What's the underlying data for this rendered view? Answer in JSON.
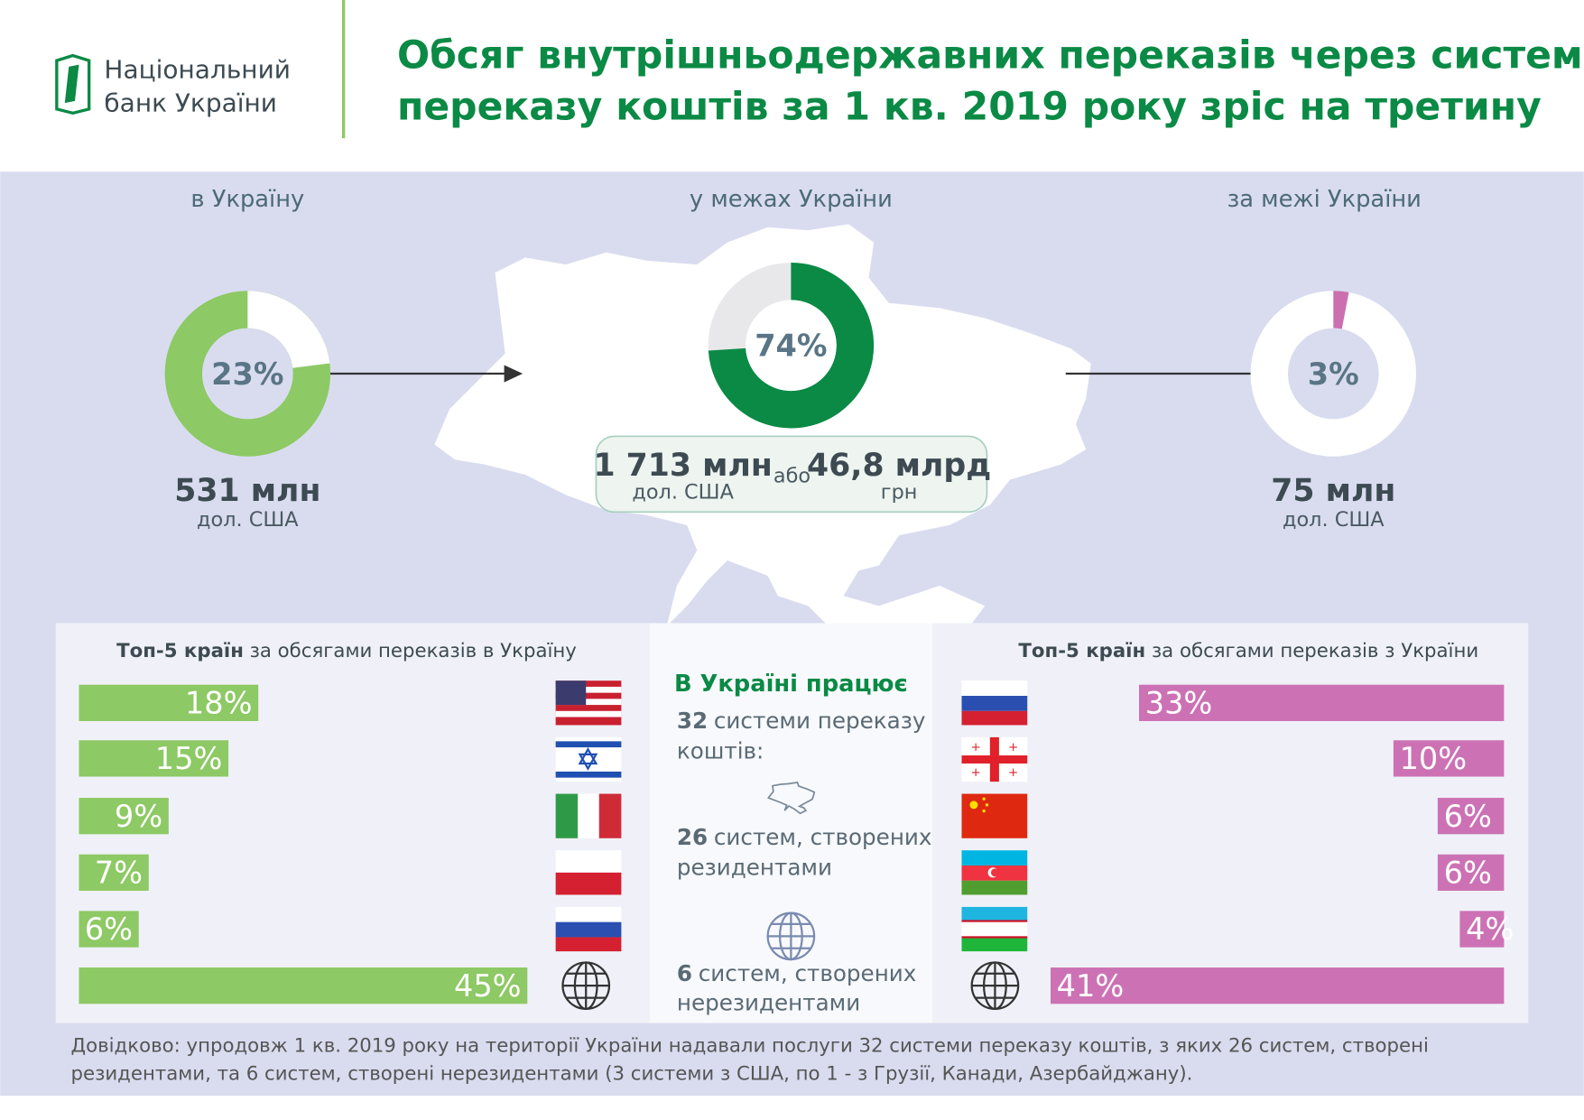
{
  "header": {
    "logo_text": [
      "Національний",
      "банк України"
    ],
    "title": [
      "Обсяг внутрішньодержавних переказів через системи",
      "переказу коштів за 1 кв. 2019 року зріс на третину"
    ]
  },
  "donuts": [
    {
      "heading": "в Україну",
      "value": 23,
      "label": "23%",
      "amount": "531 млн",
      "unit": "дол. США"
    },
    {
      "heading": "у межах України",
      "value": 74,
      "label": "74%",
      "amount": "1 713 млн",
      "unit": "дол. США",
      "connector": "або",
      "amount_alt": "46,8 млрд",
      "unit_alt": "грн"
    },
    {
      "heading": "за межі України",
      "value": 3,
      "label": "3%",
      "amount": "75 млн",
      "unit": "дол. США"
    }
  ],
  "top5_in": {
    "title_bold": "Топ-5 країн",
    "title_rest": "за обсягами переказів в Україну",
    "values": [
      18,
      15,
      9,
      7,
      6,
      45
    ],
    "value_labels": [
      "18%",
      "15%",
      "9%",
      "7%",
      "6%",
      "45%"
    ]
  },
  "top5_out": {
    "title_bold": "Топ-5 країн",
    "title_rest": "за обсягами переказів з України",
    "values": [
      33,
      10,
      6,
      6,
      4,
      41
    ],
    "value_labels": [
      "33%",
      "10%",
      "6%",
      "6%",
      "4%",
      "41%"
    ]
  },
  "systems": {
    "heading": "В Україні працює",
    "total_number": "32",
    "total_text": [
      "системи переказу",
      "коштів:"
    ],
    "resident_number": "26",
    "resident_text": [
      "систем, створених",
      "резидентами"
    ],
    "nonresident_number": "6",
    "nonresident_text": [
      "систем, створених",
      "нерезидентами"
    ]
  },
  "footnote": [
    "Довідково: упродовж 1 кв. 2019 року на території України надавали послуги 32 системи переказу коштів, з яких 26 систем, створені",
    "резидентами, та 6 систем, створені нерезидентами (3 системи з США, по 1 - з Грузії, Канади, Азербайджану)."
  ]
}
